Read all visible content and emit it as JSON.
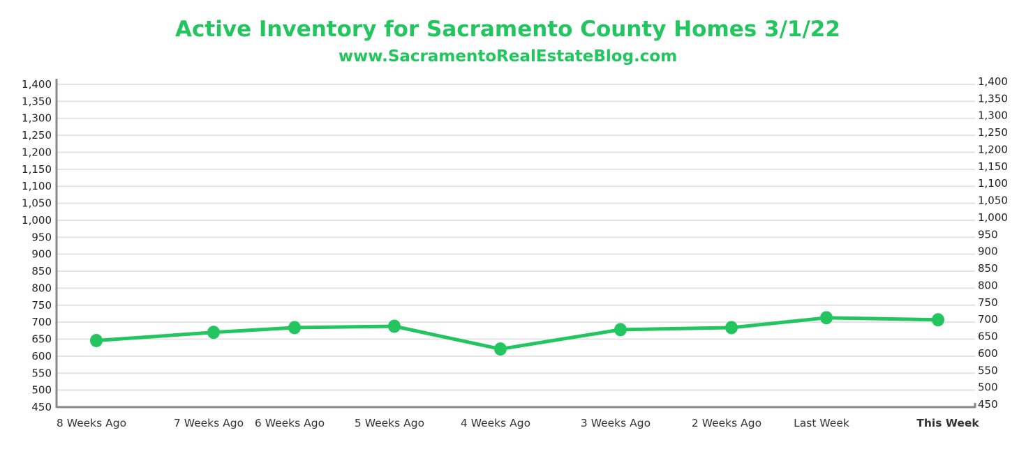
{
  "chart_data": {
    "type": "line",
    "title": "Active Inventory for Sacramento County Homes 3/1/22",
    "subtitle": "www.SacramentoRealEstateBlog.com",
    "xlabel": "",
    "ylabel": "",
    "categories": [
      "8 Weeks Ago",
      "7 Weeks Ago",
      "6 Weeks Ago",
      "5 Weeks Ago",
      "4 Weeks Ago",
      "3 Weeks Ago",
      "2 Weeks Ago",
      "Last Week",
      "This Week"
    ],
    "highlight_category": "This Week",
    "series": [
      {
        "name": "Active Inventory",
        "values": [
          646,
          670,
          684,
          688,
          621,
          678,
          684,
          713,
          707
        ]
      }
    ],
    "ylim": [
      450,
      1400
    ],
    "ytick_step": 50,
    "yticks": [
      "450",
      "500",
      "550",
      "600",
      "650",
      "700",
      "750",
      "800",
      "850",
      "900",
      "950",
      "1,000",
      "1,050",
      "1,100",
      "1,150",
      "1,200",
      "1,250",
      "1,300",
      "1,350",
      "1,400"
    ],
    "grid": true,
    "colors": {
      "line": "#22c55e",
      "title": "#22c55e",
      "grid": "#e3e3e3",
      "axis": "#888888"
    }
  }
}
